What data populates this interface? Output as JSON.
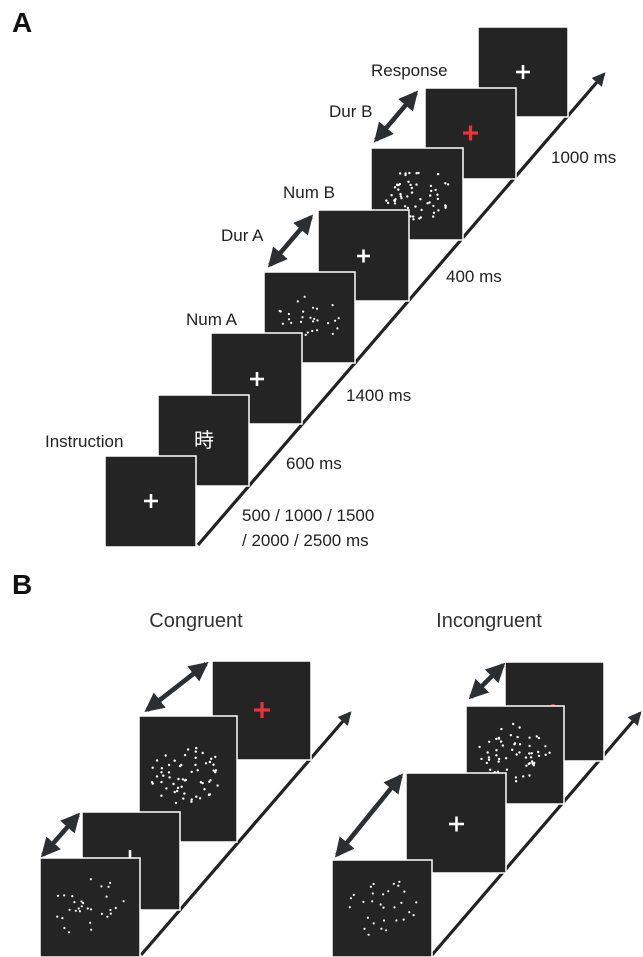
{
  "panel_a": {
    "letter": "A",
    "labels": {
      "instruction": "Instruction",
      "num_a": "Num A",
      "dur_a": "Dur A",
      "num_b": "Num B",
      "dur_b": "Dur B",
      "response": "Response"
    },
    "instruction_char": "時",
    "timings": {
      "t1_line1": "500 / 1000 / 1500",
      "t1_line2": "/ 2000 / 2500 ms",
      "t2": "600 ms",
      "t3": "1400 ms",
      "t4": "400 ms",
      "t5": "1000 ms"
    }
  },
  "panel_b": {
    "letter": "B",
    "congruent": "Congruent",
    "incongruent": "Incongruent"
  },
  "colors": {
    "screen": "#242424",
    "cross_white": "#ffffff",
    "cross_red": "#e8343a",
    "axis": "#222222"
  },
  "icons": [
    "fixation-cross-icon",
    "double-arrow-icon",
    "timeline-arrow-icon"
  ]
}
